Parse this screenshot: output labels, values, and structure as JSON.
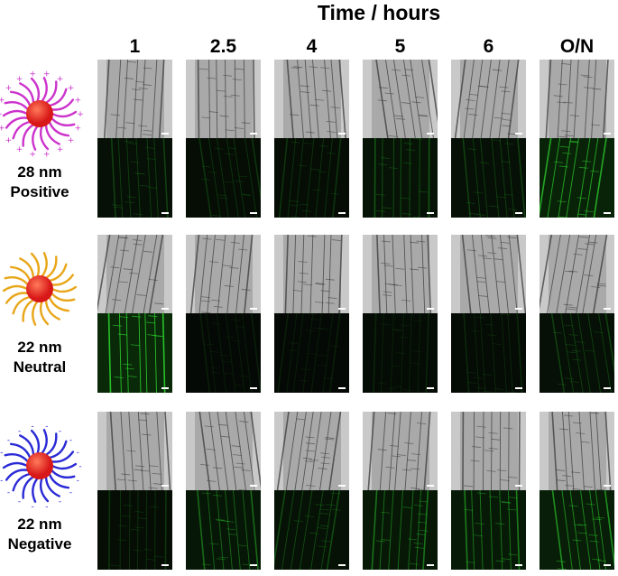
{
  "header": {
    "title": "Time / hours"
  },
  "time_points": [
    "1",
    "2.5",
    "4",
    "5",
    "6",
    "O/N"
  ],
  "rows": [
    {
      "size": "28 nm",
      "charge": "Positive",
      "ligand_color": "#cc33cc",
      "sign": "+",
      "fluorescence": [
        0.25,
        0.2,
        0.2,
        0.35,
        0.25,
        0.8
      ]
    },
    {
      "size": "22 nm",
      "charge": "Neutral",
      "ligand_color": "#e8a619",
      "sign": "",
      "fluorescence": [
        0.95,
        0.1,
        0.1,
        0.12,
        0.15,
        0.25
      ]
    },
    {
      "size": "22 nm",
      "charge": "Negative",
      "ligand_color": "#2a2ad6",
      "sign": "-",
      "fluorescence": [
        0.2,
        0.45,
        0.3,
        0.5,
        0.55,
        0.65
      ]
    }
  ],
  "core_color": "#d81818"
}
